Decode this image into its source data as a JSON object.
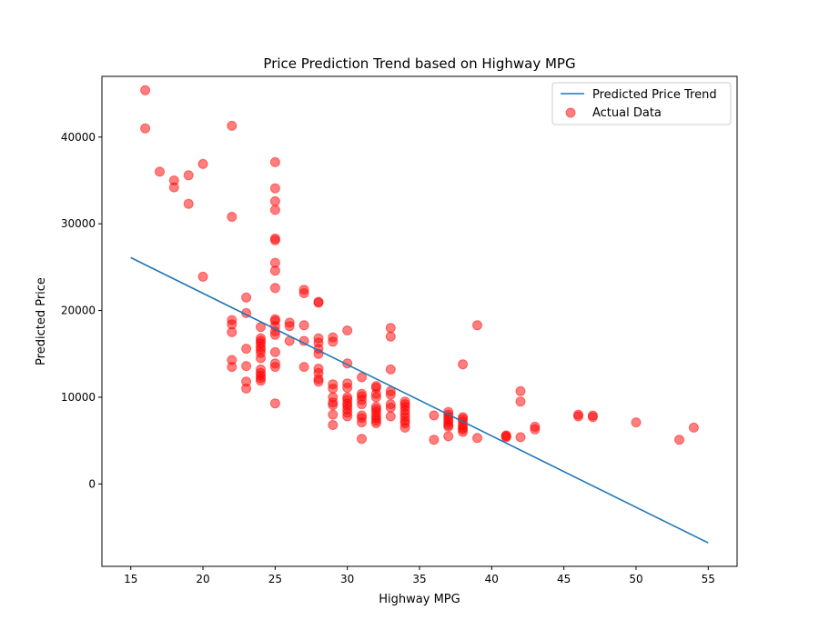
{
  "chart_data": {
    "type": "scatter",
    "title": "Price Prediction Trend based on Highway MPG",
    "xlabel": "Highway MPG",
    "ylabel": "Predicted Price",
    "xlim": [
      13,
      57
    ],
    "ylim": [
      -9500,
      47000
    ],
    "xticks": [
      15,
      20,
      25,
      30,
      35,
      40,
      45,
      50,
      55
    ],
    "yticks": [
      0,
      10000,
      20000,
      30000,
      40000
    ],
    "ytick_labels": [
      "0",
      "10000",
      "20000",
      "30000",
      "40000"
    ],
    "grid": false,
    "legend_position": "top-right",
    "colors": {
      "line": "#1f77b4",
      "points": "#ff0000",
      "points_alpha": 0.5
    },
    "series": [
      {
        "name": "Predicted Price Trend",
        "kind": "line",
        "points": [
          [
            15,
            26100
          ],
          [
            55,
            -6800
          ]
        ]
      },
      {
        "name": "Actual Data",
        "kind": "scatter",
        "points": [
          [
            16,
            45400
          ],
          [
            16,
            41000
          ],
          [
            17,
            36000
          ],
          [
            18,
            35000
          ],
          [
            18,
            34200
          ],
          [
            19,
            35600
          ],
          [
            19,
            32300
          ],
          [
            20,
            36900
          ],
          [
            20,
            23900
          ],
          [
            22,
            41300
          ],
          [
            22,
            30800
          ],
          [
            22,
            18900
          ],
          [
            22,
            18400
          ],
          [
            22,
            17500
          ],
          [
            22,
            14300
          ],
          [
            22,
            13500
          ],
          [
            23,
            21500
          ],
          [
            23,
            19700
          ],
          [
            23,
            15600
          ],
          [
            23,
            13600
          ],
          [
            23,
            11800
          ],
          [
            23,
            11000
          ],
          [
            24,
            18100
          ],
          [
            24,
            16800
          ],
          [
            24,
            16500
          ],
          [
            24,
            16200
          ],
          [
            24,
            15800
          ],
          [
            24,
            15500
          ],
          [
            24,
            15100
          ],
          [
            24,
            14500
          ],
          [
            24,
            13200
          ],
          [
            24,
            12800
          ],
          [
            24,
            12500
          ],
          [
            24,
            12200
          ],
          [
            24,
            11900
          ],
          [
            25,
            37100
          ],
          [
            25,
            34100
          ],
          [
            25,
            32600
          ],
          [
            25,
            31600
          ],
          [
            25,
            28300
          ],
          [
            25,
            28100
          ],
          [
            25,
            25500
          ],
          [
            25,
            24600
          ],
          [
            25,
            22600
          ],
          [
            25,
            19000
          ],
          [
            25,
            18800
          ],
          [
            25,
            18200
          ],
          [
            25,
            17600
          ],
          [
            25,
            17200
          ],
          [
            25,
            15200
          ],
          [
            25,
            13900
          ],
          [
            25,
            13500
          ],
          [
            25,
            9300
          ],
          [
            26,
            18600
          ],
          [
            26,
            18200
          ],
          [
            26,
            16500
          ],
          [
            27,
            22400
          ],
          [
            27,
            22000
          ],
          [
            27,
            18300
          ],
          [
            27,
            16500
          ],
          [
            27,
            13500
          ],
          [
            28,
            21000
          ],
          [
            28,
            20900
          ],
          [
            28,
            16800
          ],
          [
            28,
            16300
          ],
          [
            28,
            15600
          ],
          [
            28,
            15000
          ],
          [
            28,
            13300
          ],
          [
            28,
            12800
          ],
          [
            28,
            12100
          ],
          [
            28,
            11800
          ],
          [
            29,
            16900
          ],
          [
            29,
            16400
          ],
          [
            29,
            11500
          ],
          [
            29,
            11000
          ],
          [
            29,
            10000
          ],
          [
            29,
            9400
          ],
          [
            29,
            9100
          ],
          [
            29,
            8000
          ],
          [
            29,
            6800
          ],
          [
            30,
            17700
          ],
          [
            30,
            13900
          ],
          [
            30,
            11600
          ],
          [
            30,
            11100
          ],
          [
            30,
            10000
          ],
          [
            30,
            9700
          ],
          [
            30,
            9300
          ],
          [
            30,
            9000
          ],
          [
            30,
            8600
          ],
          [
            30,
            8200
          ],
          [
            30,
            7800
          ],
          [
            31,
            12300
          ],
          [
            31,
            10400
          ],
          [
            31,
            10100
          ],
          [
            31,
            9700
          ],
          [
            31,
            9200
          ],
          [
            31,
            7900
          ],
          [
            31,
            7600
          ],
          [
            31,
            7100
          ],
          [
            31,
            5200
          ],
          [
            32,
            11300
          ],
          [
            32,
            11100
          ],
          [
            32,
            10400
          ],
          [
            32,
            10000
          ],
          [
            32,
            8900
          ],
          [
            32,
            8600
          ],
          [
            32,
            8300
          ],
          [
            32,
            7900
          ],
          [
            32,
            7600
          ],
          [
            32,
            7300
          ],
          [
            32,
            7000
          ],
          [
            33,
            18000
          ],
          [
            33,
            17000
          ],
          [
            33,
            13200
          ],
          [
            33,
            10700
          ],
          [
            33,
            10300
          ],
          [
            33,
            9200
          ],
          [
            33,
            8800
          ],
          [
            33,
            7800
          ],
          [
            34,
            9500
          ],
          [
            34,
            9200
          ],
          [
            34,
            8900
          ],
          [
            34,
            8500
          ],
          [
            34,
            8100
          ],
          [
            34,
            7700
          ],
          [
            34,
            7300
          ],
          [
            34,
            7000
          ],
          [
            34,
            6500
          ],
          [
            36,
            7900
          ],
          [
            36,
            5100
          ],
          [
            37,
            8300
          ],
          [
            37,
            8000
          ],
          [
            37,
            7700
          ],
          [
            37,
            7400
          ],
          [
            37,
            7100
          ],
          [
            37,
            6800
          ],
          [
            37,
            6600
          ],
          [
            37,
            5500
          ],
          [
            38,
            13800
          ],
          [
            38,
            7700
          ],
          [
            38,
            7500
          ],
          [
            38,
            7200
          ],
          [
            38,
            6800
          ],
          [
            38,
            6500
          ],
          [
            38,
            6300
          ],
          [
            38,
            6000
          ],
          [
            39,
            18300
          ],
          [
            39,
            5300
          ],
          [
            41,
            5600
          ],
          [
            41,
            5500
          ],
          [
            41,
            5400
          ],
          [
            42,
            10700
          ],
          [
            42,
            9500
          ],
          [
            42,
            5400
          ],
          [
            43,
            6600
          ],
          [
            43,
            6300
          ],
          [
            46,
            8000
          ],
          [
            46,
            7800
          ],
          [
            47,
            7900
          ],
          [
            47,
            7700
          ],
          [
            50,
            7100
          ],
          [
            53,
            5100
          ],
          [
            54,
            6500
          ]
        ]
      }
    ]
  }
}
